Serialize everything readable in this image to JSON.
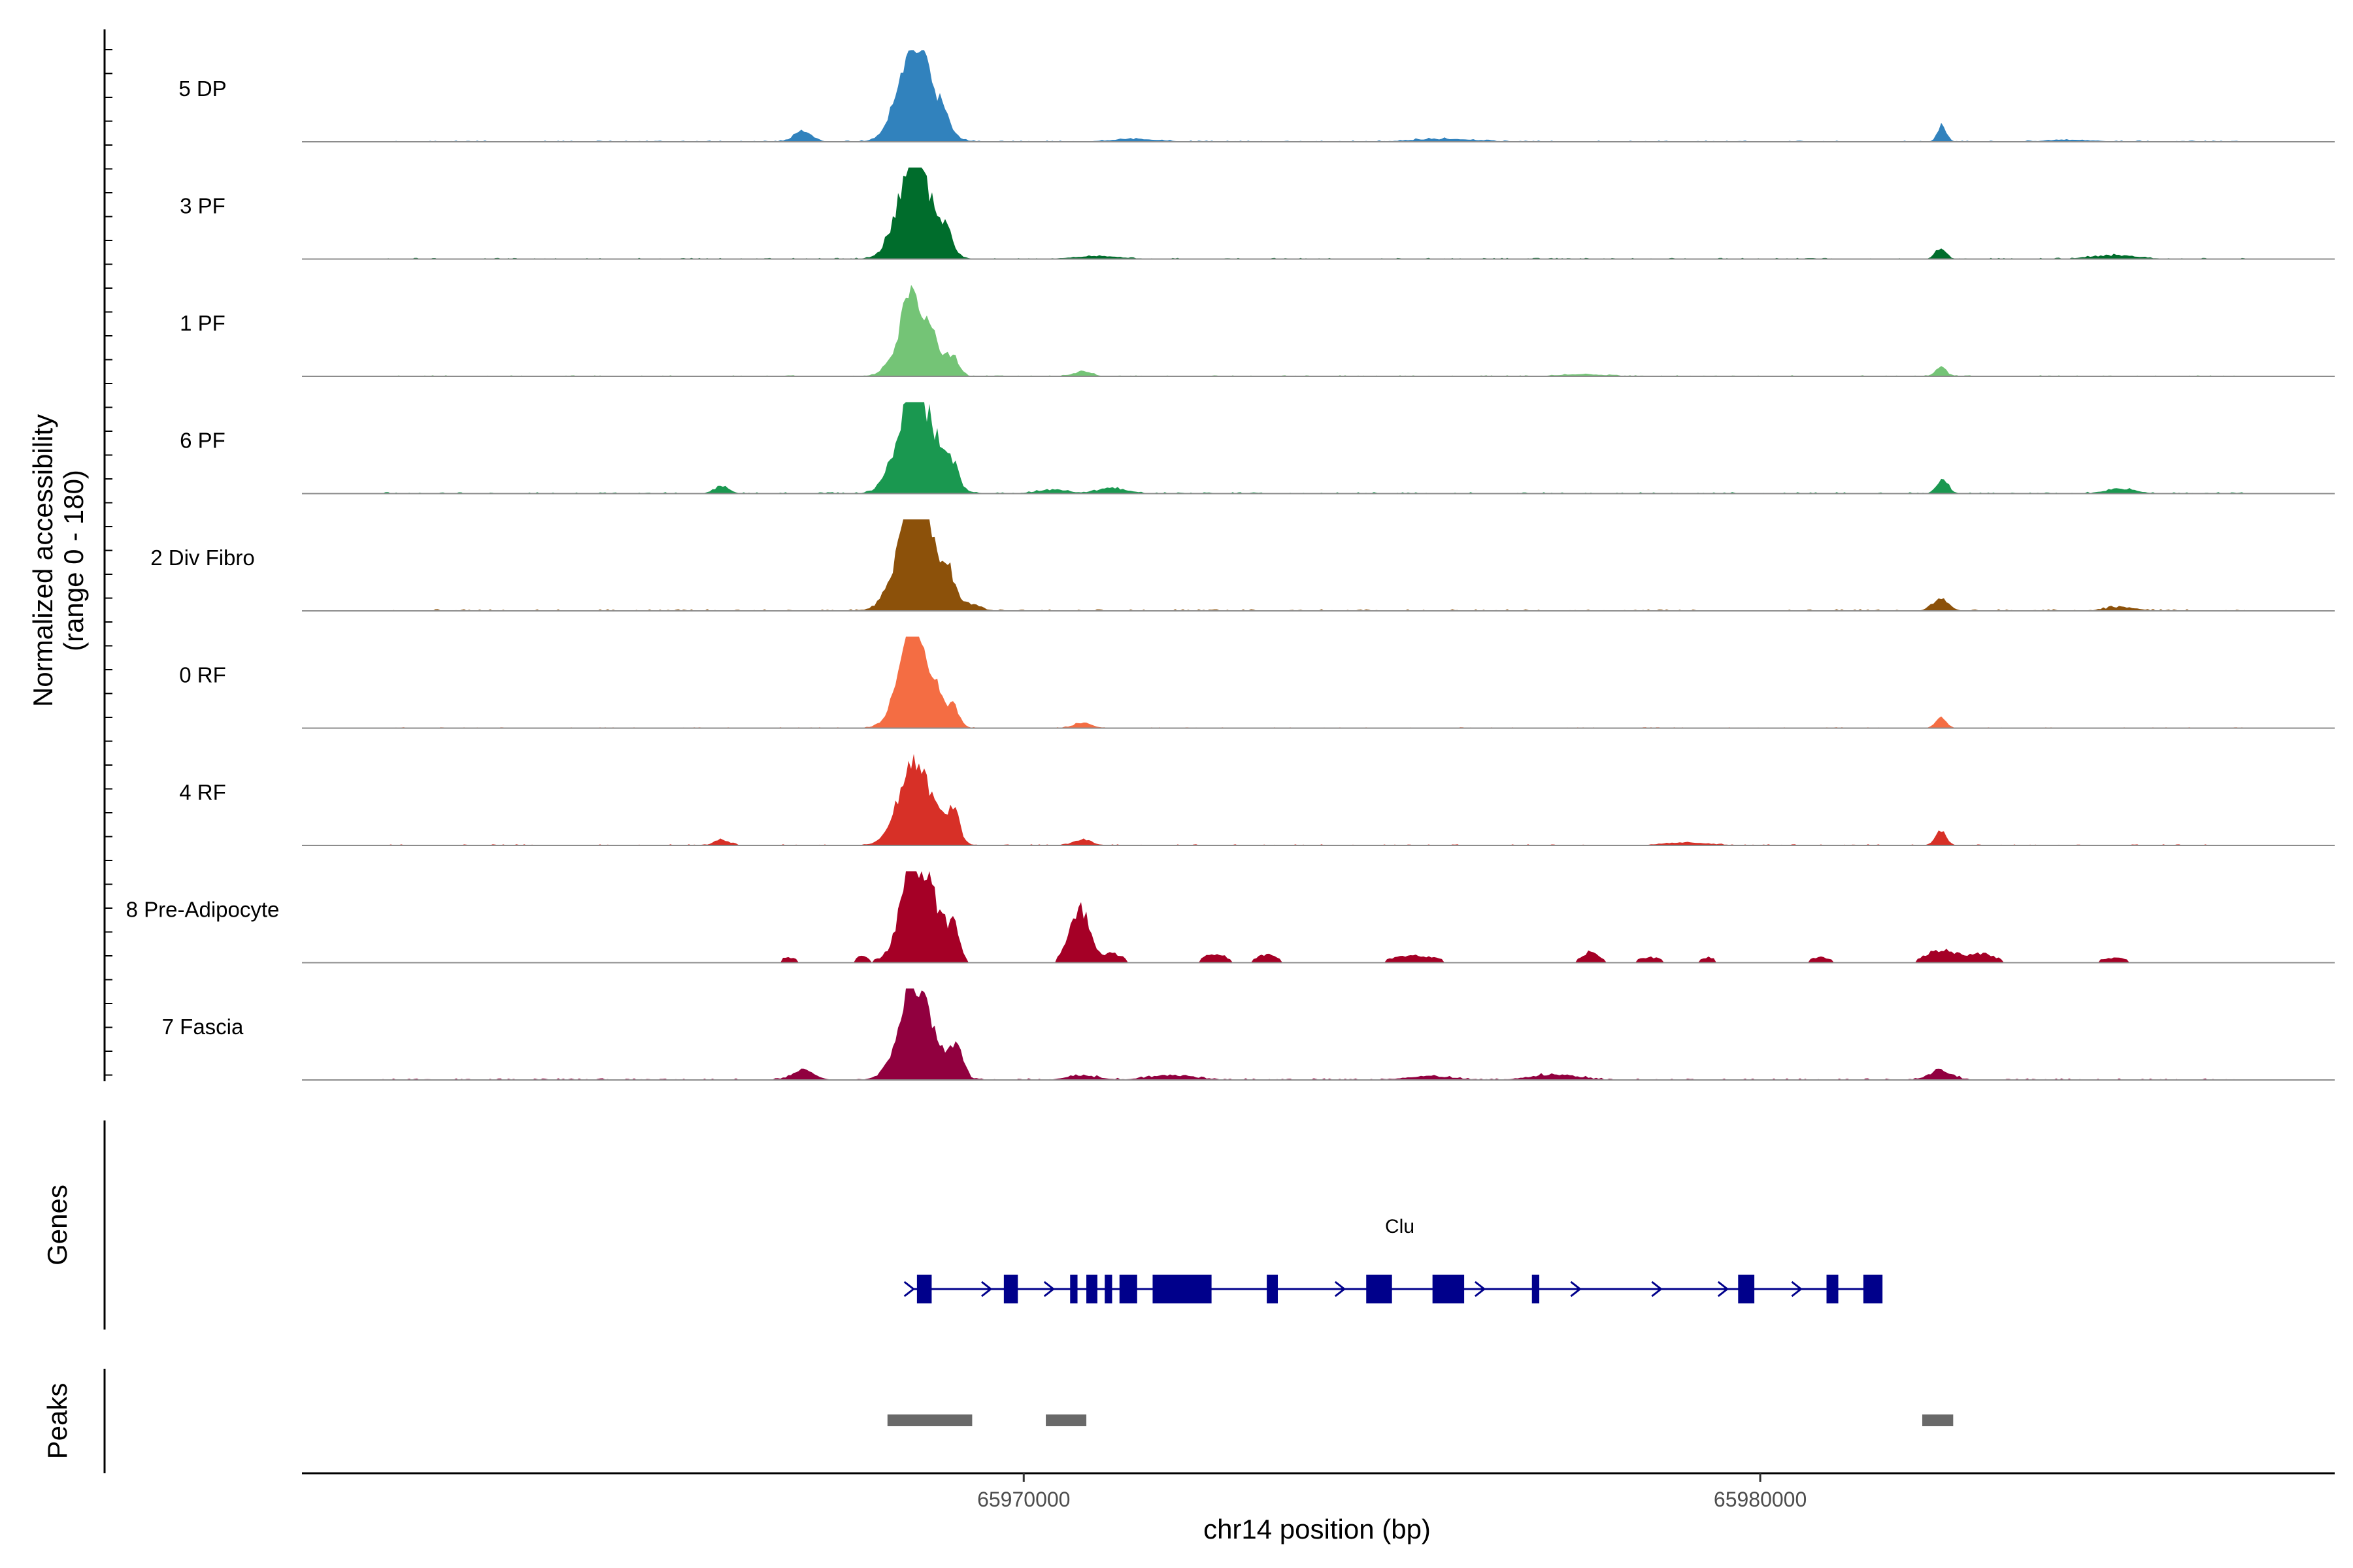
{
  "chart_data": {
    "type": "area",
    "title": "",
    "xlabel": "chr14 position (bp)",
    "ylabel": "Normalized accessibility\n(range 0 - 180)",
    "ylabel_lines": [
      "Normalized accessibility",
      "(range 0 - 180)"
    ],
    "y_range": [
      0,
      180
    ],
    "x_range": [
      65960200,
      65987800
    ],
    "x_ticks": [
      {
        "value": 65970000,
        "label": "65970000"
      },
      {
        "value": 65980000,
        "label": "65980000"
      }
    ],
    "series": [
      {
        "name": "5 DP",
        "color": "#3182BD",
        "peaks": [
          [
            65968560,
            100,
            230
          ],
          [
            65968440,
            25,
            100
          ],
          [
            65968950,
            14,
            60
          ],
          [
            65967000,
            12,
            120
          ],
          [
            65982470,
            18,
            60
          ],
          [
            65968200,
            5,
            90
          ],
          [
            65971500,
            3,
            300
          ],
          [
            65975700,
            3,
            400
          ],
          [
            65984200,
            2,
            300
          ]
        ],
        "noise": 1.4,
        "span": [
          65961300,
          65986600
        ]
      },
      {
        "name": "3 PF",
        "color": "#006D2C",
        "peaks": [
          [
            65968550,
            95,
            230
          ],
          [
            65968450,
            30,
            100
          ],
          [
            65968950,
            18,
            70
          ],
          [
            65982450,
            12,
            70
          ],
          [
            65968200,
            5,
            90
          ],
          [
            65984800,
            4,
            300
          ],
          [
            65971000,
            3,
            300
          ]
        ],
        "noise": 1.3,
        "span": [
          65961300,
          65986600
        ]
      },
      {
        "name": "1 PF",
        "color": "#74C476",
        "peaks": [
          [
            65968560,
            75,
            220
          ],
          [
            65968450,
            25,
            100
          ],
          [
            65969050,
            18,
            70
          ],
          [
            65982450,
            10,
            70
          ],
          [
            65970800,
            5,
            120
          ],
          [
            65968200,
            4,
            90
          ],
          [
            65977600,
            2,
            300
          ]
        ],
        "noise": 1.2,
        "span": [
          65961300,
          65986600
        ]
      },
      {
        "name": "6 PF",
        "color": "#1A9850",
        "peaks": [
          [
            65968580,
            100,
            250
          ],
          [
            65968450,
            30,
            100
          ],
          [
            65969050,
            18,
            70
          ],
          [
            65982480,
            18,
            70
          ],
          [
            65965900,
            8,
            100
          ],
          [
            65968200,
            6,
            90
          ],
          [
            65971200,
            6,
            200
          ],
          [
            65984900,
            5,
            200
          ],
          [
            65970400,
            4,
            200
          ]
        ],
        "noise": 1.6,
        "span": [
          65961300,
          65986600
        ]
      },
      {
        "name": "2 Div Fibro",
        "color": "#8C510A",
        "peaks": [
          [
            65968580,
            110,
            250
          ],
          [
            65968450,
            30,
            100
          ],
          [
            65969000,
            20,
            70
          ],
          [
            65982450,
            14,
            100
          ],
          [
            65968200,
            8,
            90
          ],
          [
            65969300,
            6,
            120
          ],
          [
            65984900,
            4,
            200
          ]
        ],
        "noise": 1.8,
        "span": [
          65961300,
          65986600
        ]
      },
      {
        "name": "0 RF",
        "color": "#F46D43",
        "peaks": [
          [
            65968560,
            95,
            220
          ],
          [
            65968450,
            28,
            100
          ],
          [
            65969050,
            18,
            70
          ],
          [
            65982450,
            12,
            70
          ],
          [
            65970800,
            6,
            120
          ],
          [
            65968200,
            4,
            90
          ]
        ],
        "noise": 1.0,
        "span": [
          65961300,
          65986600
        ]
      },
      {
        "name": "4 RF",
        "color": "#D73027",
        "peaks": [
          [
            65968560,
            80,
            230
          ],
          [
            65968450,
            28,
            100
          ],
          [
            65969050,
            32,
            80
          ],
          [
            65982450,
            16,
            70
          ],
          [
            65965900,
            6,
            100
          ],
          [
            65970800,
            6,
            120
          ],
          [
            65968200,
            5,
            90
          ],
          [
            65979000,
            3,
            300
          ]
        ],
        "noise": 1.3,
        "span": [
          65961300,
          65986600
        ]
      },
      {
        "name": "8 Pre-Adipocyte",
        "color": "#A50026",
        "peaks": [
          [
            65968600,
            100,
            230
          ],
          [
            65968450,
            30,
            100
          ],
          [
            65969050,
            30,
            80
          ],
          [
            65970800,
            55,
            110
          ],
          [
            65970600,
            20,
            90
          ],
          [
            65971200,
            10,
            150
          ],
          [
            65972600,
            10,
            150
          ],
          [
            65973300,
            9,
            150
          ],
          [
            65975300,
            8,
            300
          ],
          [
            65977700,
            12,
            120
          ],
          [
            65982450,
            14,
            200
          ],
          [
            65983000,
            10,
            200
          ],
          [
            65966800,
            6,
            120
          ],
          [
            65967800,
            7,
            90
          ],
          [
            65978500,
            6,
            150
          ],
          [
            65979300,
            6,
            120
          ],
          [
            65980800,
            6,
            150
          ],
          [
            65984800,
            5,
            200
          ]
        ],
        "noise": 0.0,
        "gappy": true,
        "span": [
          65966400,
          65985200
        ]
      },
      {
        "name": "7 Fascia",
        "color": "#91003F",
        "peaks": [
          [
            65968560,
            90,
            230
          ],
          [
            65968450,
            25,
            100
          ],
          [
            65969080,
            36,
            90
          ],
          [
            65967000,
            10,
            150
          ],
          [
            65972000,
            5,
            300
          ],
          [
            65977200,
            6,
            300
          ],
          [
            65982450,
            10,
            150
          ],
          [
            65970800,
            5,
            200
          ],
          [
            65975500,
            4,
            300
          ]
        ],
        "noise": 1.8,
        "span": [
          65961300,
          65986600
        ]
      }
    ],
    "genes": [
      {
        "name": "Clu",
        "start": 65968500,
        "end": 65981600,
        "strand": "+",
        "exons": [
          [
            65968550,
            65968750
          ],
          [
            65969730,
            65969920
          ],
          [
            65970630,
            65970730
          ],
          [
            65970850,
            65971000
          ],
          [
            65971100,
            65971200
          ],
          [
            65971300,
            65971540
          ],
          [
            65971750,
            65972550
          ],
          [
            65973300,
            65973450
          ],
          [
            65974650,
            65975000
          ],
          [
            65975550,
            65975980
          ],
          [
            65976900,
            65977000
          ],
          [
            65979700,
            65979920
          ],
          [
            65980900,
            65981060
          ],
          [
            65981400,
            65981660
          ]
        ],
        "arrows": [
          65968450,
          65969500,
          65970350,
          65974300,
          65976200,
          65977500,
          65978600,
          65979500,
          65980500
        ]
      }
    ],
    "peaks": [
      {
        "start": 65968150,
        "end": 65969300
      },
      {
        "start": 65970300,
        "end": 65970850
      },
      {
        "start": 65982200,
        "end": 65982620
      }
    ],
    "panel_labels": {
      "genes": "Genes",
      "peaks": "Peaks"
    },
    "colors": {
      "gene": "#00008B",
      "peak": "#696969",
      "baseline": "#8c8c8c",
      "axis": "#000000"
    }
  }
}
